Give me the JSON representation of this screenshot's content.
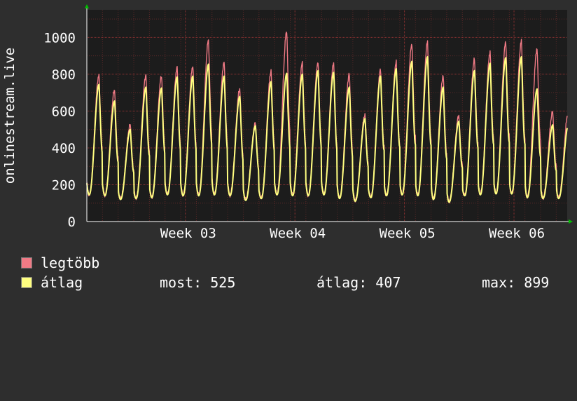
{
  "chart_data": {
    "type": "line",
    "ylabel": "onlinestream.live",
    "yticks": [
      "0",
      "200",
      "400",
      "600",
      "800",
      "1000"
    ],
    "ylim": [
      0,
      1150
    ],
    "xticks": [
      "Week 03",
      "Week 04",
      "Week 05",
      "Week 06"
    ],
    "xtick_days": [
      6.3,
      13.3,
      20.3,
      27.3
    ],
    "xlim_days": [
      0,
      30.7
    ],
    "grid": true,
    "series": [
      {
        "name": "legtöbb",
        "color": "#f07a85",
        "daily_peaks": [
          795,
          715,
          525,
          795,
          790,
          835,
          845,
          985,
          865,
          720,
          535,
          815,
          1035,
          860,
          865,
          860,
          800,
          580,
          825,
          865,
          965,
          975,
          790,
          575,
          880,
          920,
          975,
          980,
          940,
          595
        ],
        "daily_troughs": [
          145,
          145,
          125,
          130,
          135,
          150,
          145,
          145,
          150,
          145,
          120,
          130,
          150,
          145,
          145,
          150,
          130,
          115,
          135,
          145,
          150,
          145,
          125,
          110,
          145,
          150,
          155,
          155,
          135,
          130
        ]
      },
      {
        "name": "átlag",
        "color": "#ffff80",
        "daily_peaks": [
          745,
          655,
          500,
          730,
          725,
          785,
          790,
          855,
          790,
          680,
          520,
          760,
          805,
          800,
          820,
          810,
          730,
          560,
          790,
          830,
          870,
          895,
          730,
          545,
          820,
          860,
          890,
          895,
          720,
          525
        ],
        "daily_troughs": [
          145,
          140,
          120,
          125,
          130,
          145,
          140,
          140,
          145,
          140,
          115,
          125,
          145,
          140,
          140,
          145,
          125,
          110,
          130,
          140,
          145,
          140,
          120,
          105,
          140,
          145,
          150,
          150,
          130,
          125
        ]
      }
    ]
  },
  "legend": {
    "max_series_label": "legtöbb",
    "avg_series_label": "átlag",
    "max_color": "#f07a85",
    "avg_color": "#ffff80",
    "stats": {
      "current": "most: 525",
      "average": "átlag: 407",
      "maximum": "max: 899"
    }
  },
  "colors": {
    "background": "#2e2e2e",
    "plot_background": "#1c1c1c",
    "grid": "#7a2a2a",
    "axis": "#ffffff",
    "arrow": "#00c000"
  }
}
